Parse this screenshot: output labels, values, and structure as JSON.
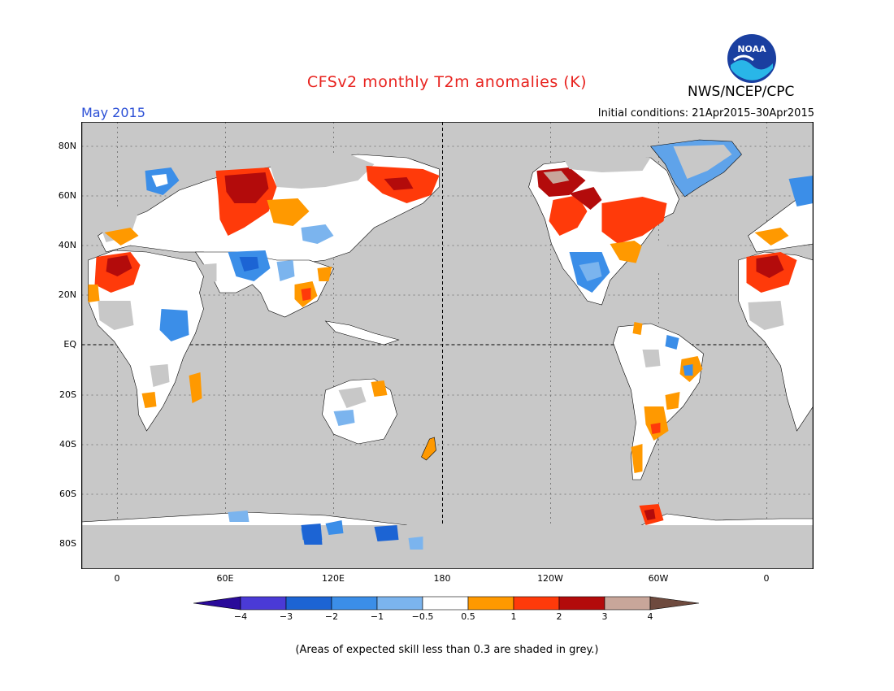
{
  "header": {
    "title": "CFSv2 monthly T2m anomalies (K)",
    "org": "NWS/NCEP/CPC",
    "month": "May 2015",
    "initial_conditions": "Initial conditions: 21Apr2015–30Apr2015",
    "logo_text": "NOAA"
  },
  "map": {
    "lat_ticks": [
      "80N",
      "60N",
      "40N",
      "20N",
      "EQ",
      "20S",
      "40S",
      "60S",
      "80S"
    ],
    "lon_ticks": [
      "0",
      "60E",
      "120E",
      "180",
      "120W",
      "60W",
      "0"
    ],
    "ocean_color": "#c8c8c8",
    "skill_grey_color": "#a8a8a8"
  },
  "colorbar": {
    "labels": [
      "−4",
      "−3",
      "−2",
      "−1",
      "−0.5",
      "0.5",
      "1",
      "2",
      "3",
      "4"
    ],
    "colors": [
      "#2a0a9a",
      "#4a3ad6",
      "#1c64d4",
      "#3b8ee8",
      "#7bb4ee",
      "#ffffff",
      "#ff9900",
      "#ff3a0a",
      "#b30b0b",
      "#c8a69a",
      "#6e4a3e"
    ]
  },
  "footnote": "(Areas of expected skill less than 0.3 are shaded in grey.)"
}
